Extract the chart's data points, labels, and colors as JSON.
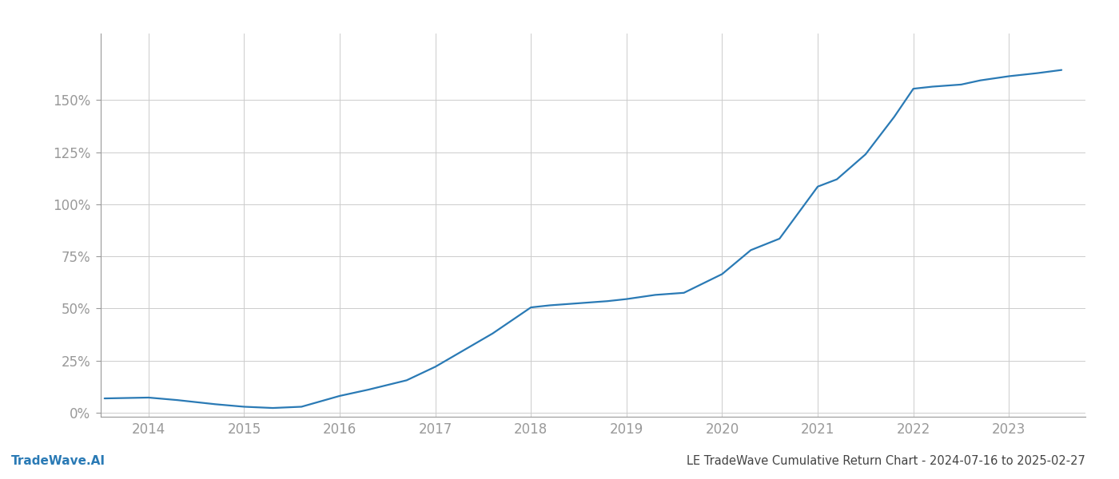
{
  "title": "LE TradeWave Cumulative Return Chart - 2024-07-16 to 2025-02-27",
  "watermark": "TradeWave.AI",
  "line_color": "#2a7ab5",
  "background_color": "#ffffff",
  "grid_color": "#cccccc",
  "x_years": [
    2013.54,
    2014.0,
    2014.3,
    2014.7,
    2015.0,
    2015.3,
    2015.6,
    2016.0,
    2016.3,
    2016.7,
    2017.0,
    2017.3,
    2017.6,
    2018.0,
    2018.2,
    2018.5,
    2018.8,
    2019.0,
    2019.3,
    2019.6,
    2020.0,
    2020.3,
    2020.6,
    2021.0,
    2021.2,
    2021.5,
    2021.8,
    2022.0,
    2022.2,
    2022.5,
    2022.7,
    2023.0,
    2023.3,
    2023.55
  ],
  "y_values": [
    0.068,
    0.072,
    0.06,
    0.04,
    0.028,
    0.022,
    0.028,
    0.08,
    0.11,
    0.155,
    0.22,
    0.3,
    0.38,
    0.505,
    0.515,
    0.525,
    0.535,
    0.545,
    0.565,
    0.575,
    0.665,
    0.78,
    0.835,
    1.085,
    1.12,
    1.24,
    1.42,
    1.555,
    1.565,
    1.575,
    1.595,
    1.615,
    1.63,
    1.645
  ],
  "xlim": [
    2013.5,
    2023.8
  ],
  "ylim": [
    -0.02,
    1.82
  ],
  "yticks": [
    0.0,
    0.25,
    0.5,
    0.75,
    1.0,
    1.25,
    1.5
  ],
  "ytick_labels": [
    "0%",
    "25%",
    "50%",
    "75%",
    "100%",
    "125%",
    "150%"
  ],
  "xticks": [
    2014,
    2015,
    2016,
    2017,
    2018,
    2019,
    2020,
    2021,
    2022,
    2023
  ],
  "tick_color": "#999999",
  "label_color": "#999999",
  "spine_color": "#999999",
  "title_fontsize": 10.5,
  "watermark_fontsize": 11,
  "line_width": 1.6,
  "figsize": [
    14.0,
    6.0
  ],
  "dpi": 100
}
